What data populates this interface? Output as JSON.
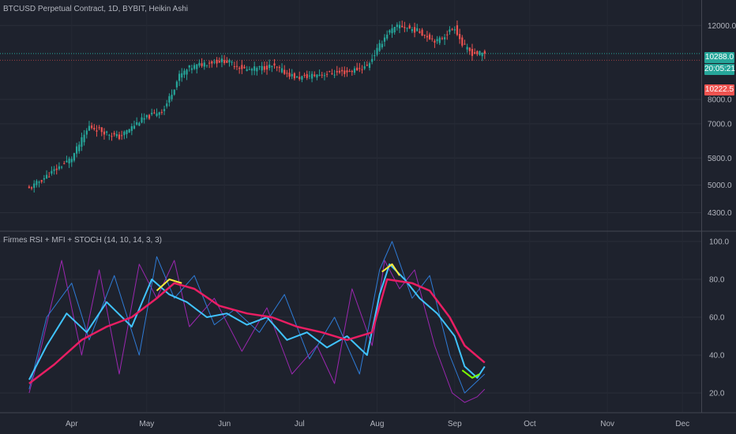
{
  "header": {
    "symbol_line": "BTCUSD Perpetual Contract, 1D, BYBIT, Heikin Ashi"
  },
  "indicator": {
    "title": "Firmes RSI + MFI + STOCH (14, 10, 14, 3, 3)"
  },
  "badges": {
    "last_price": "10288.0",
    "countdown": "20:05:21",
    "low_price": "10222.5",
    "last_color": "#26a69a",
    "low_color": "#ef5350"
  },
  "colors": {
    "background": "#1e222d",
    "grid": "#2a2e39",
    "up_candle": "#26a69a",
    "down_candle": "#ef5350",
    "rsi_line": "#40c4ff",
    "mfi_line": "#2e7bd6",
    "stoch_line": "#9c27b0",
    "signal_line": "#e91e63",
    "highlight_yellow": "#ffeb3b",
    "highlight_green": "#7cfc00"
  },
  "chart_data": [
    {
      "type": "candlestick",
      "title": "BTCUSD Perpetual Contract, 1D, BYBIT, Heikin Ashi",
      "scale": "log",
      "y_ticks": [
        "12000.0",
        "8000.0",
        "7000.0",
        "5800.0",
        "5000.0",
        "4300.0"
      ],
      "y_tick_values": [
        12000,
        8000,
        7000,
        5800,
        5000,
        4300
      ],
      "ylim": [
        3900,
        13800
      ],
      "x_ticks": [
        "Apr",
        "May",
        "Jun",
        "Jul",
        "Aug",
        "Sep",
        "Oct",
        "Nov",
        "Dec"
      ],
      "x_tick_dates": [
        "2019-04-01",
        "2019-05-01",
        "2019-06-01",
        "2019-07-01",
        "2019-08-01",
        "2019-09-01",
        "2019-10-01",
        "2019-11-01",
        "2019-12-01"
      ],
      "close_anchor_dates": [
        "2019-03-15",
        "2019-04-01",
        "2019-04-08",
        "2019-04-20",
        "2019-04-28",
        "2019-05-08",
        "2019-05-14",
        "2019-05-18",
        "2019-05-25",
        "2019-06-01",
        "2019-06-10",
        "2019-06-20",
        "2019-06-30",
        "2019-07-10",
        "2019-07-20",
        "2019-07-28",
        "2019-08-01",
        "2019-08-05",
        "2019-08-10",
        "2019-08-18",
        "2019-08-25",
        "2019-09-01",
        "2019-09-04",
        "2019-09-08",
        "2019-09-13"
      ],
      "close_anchor_values": [
        4900,
        5800,
        6900,
        6500,
        7100,
        7600,
        9100,
        9500,
        9800,
        9900,
        9400,
        9600,
        9000,
        9200,
        9300,
        9600,
        10500,
        11500,
        12000,
        11600,
        11000,
        11900,
        10800,
        10300,
        10288
      ],
      "current_price": 10288,
      "low_price": 10222.5
    },
    {
      "type": "line",
      "title": "Firmes RSI + MFI + STOCH (14, 10, 14, 3, 3)",
      "y_ticks": [
        "100.0",
        "80.0",
        "60.0",
        "40.0",
        "20.0"
      ],
      "y_tick_values": [
        100,
        80,
        60,
        40,
        20
      ],
      "ylim": [
        10,
        105
      ],
      "x_ticks": [
        "Apr",
        "May",
        "Jun",
        "Jul",
        "Aug",
        "Sep",
        "Oct",
        "Nov",
        "Dec"
      ],
      "series": [
        {
          "color": "#e91e63",
          "width": 2.5,
          "dates": [
            "2019-03-15",
            "2019-03-25",
            "2019-04-05",
            "2019-04-15",
            "2019-04-25",
            "2019-05-05",
            "2019-05-12",
            "2019-05-20",
            "2019-05-30",
            "2019-06-10",
            "2019-06-20",
            "2019-06-30",
            "2019-07-10",
            "2019-07-20",
            "2019-07-30",
            "2019-08-05",
            "2019-08-15",
            "2019-08-22",
            "2019-08-30",
            "2019-09-05",
            "2019-09-13"
          ],
          "values": [
            25,
            35,
            48,
            55,
            60,
            70,
            78,
            75,
            66,
            62,
            60,
            55,
            52,
            48,
            52,
            80,
            78,
            74,
            60,
            45,
            36
          ]
        },
        {
          "color": "#40c4ff",
          "width": 2,
          "dates": [
            "2019-03-15",
            "2019-03-22",
            "2019-03-30",
            "2019-04-07",
            "2019-04-15",
            "2019-04-25",
            "2019-05-03",
            "2019-05-10",
            "2019-05-17",
            "2019-05-25",
            "2019-06-02",
            "2019-06-10",
            "2019-06-18",
            "2019-06-26",
            "2019-07-04",
            "2019-07-12",
            "2019-07-20",
            "2019-07-28",
            "2019-08-02",
            "2019-08-06",
            "2019-08-12",
            "2019-08-18",
            "2019-08-25",
            "2019-09-01",
            "2019-09-05",
            "2019-09-10",
            "2019-09-13"
          ],
          "values": [
            27,
            45,
            62,
            52,
            68,
            55,
            80,
            72,
            68,
            60,
            62,
            56,
            60,
            48,
            52,
            44,
            50,
            40,
            72,
            88,
            80,
            70,
            62,
            50,
            34,
            28,
            34
          ]
        },
        {
          "color": "#2e7bd6",
          "width": 1,
          "dates": [
            "2019-03-15",
            "2019-03-22",
            "2019-04-01",
            "2019-04-08",
            "2019-04-18",
            "2019-04-28",
            "2019-05-05",
            "2019-05-12",
            "2019-05-20",
            "2019-05-28",
            "2019-06-05",
            "2019-06-15",
            "2019-06-25",
            "2019-07-05",
            "2019-07-15",
            "2019-07-25",
            "2019-08-02",
            "2019-08-07",
            "2019-08-15",
            "2019-08-22",
            "2019-08-30",
            "2019-09-05",
            "2019-09-13"
          ],
          "values": [
            22,
            60,
            78,
            48,
            82,
            40,
            92,
            70,
            82,
            56,
            64,
            52,
            72,
            38,
            60,
            30,
            85,
            100,
            70,
            82,
            40,
            20,
            30
          ]
        },
        {
          "color": "#9c27b0",
          "width": 1,
          "dates": [
            "2019-03-15",
            "2019-03-20",
            "2019-03-28",
            "2019-04-05",
            "2019-04-12",
            "2019-04-20",
            "2019-04-28",
            "2019-05-05",
            "2019-05-12",
            "2019-05-18",
            "2019-05-28",
            "2019-06-08",
            "2019-06-18",
            "2019-06-28",
            "2019-07-08",
            "2019-07-15",
            "2019-07-22",
            "2019-07-30",
            "2019-08-04",
            "2019-08-10",
            "2019-08-16",
            "2019-08-24",
            "2019-08-31",
            "2019-09-05",
            "2019-09-10",
            "2019-09-13"
          ],
          "values": [
            20,
            45,
            90,
            40,
            85,
            30,
            88,
            70,
            90,
            55,
            70,
            42,
            65,
            30,
            45,
            25,
            75,
            45,
            90,
            75,
            85,
            45,
            20,
            15,
            18,
            22
          ]
        }
      ],
      "highlight_segments": [
        {
          "color": "#ffeb3b",
          "dates": [
            "2019-05-05",
            "2019-05-10",
            "2019-05-15"
          ],
          "values": [
            74,
            80,
            78
          ]
        },
        {
          "color": "#ffeb3b",
          "dates": [
            "2019-08-03",
            "2019-08-07",
            "2019-08-10"
          ],
          "values": [
            84,
            88,
            82
          ]
        },
        {
          "color": "#7cfc00",
          "dates": [
            "2019-09-04",
            "2019-09-08",
            "2019-09-11"
          ],
          "values": [
            32,
            28,
            30
          ]
        }
      ],
      "reference_lines": [
        20,
        80
      ]
    }
  ]
}
